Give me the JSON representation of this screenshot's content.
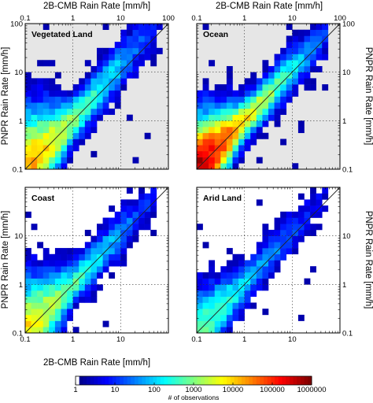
{
  "figure": {
    "top_xlabel": "2B-CMB Rain Rate [mm/h]",
    "bottom_xlabel": "2B-CMB Rain Rate [mm/h]",
    "right_ylabel": "PNPR Rain Rate [mm/h]",
    "left_ylabel": "PNPR Rain Rate [mm/h]"
  },
  "axis_ticks": {
    "x": [
      {
        "value": 0.1,
        "label": "0.1"
      },
      {
        "value": 1,
        "label": "1"
      },
      {
        "value": 10,
        "label": "10"
      },
      {
        "value": 100,
        "label": "100"
      }
    ],
    "y": [
      {
        "value": 0.1,
        "label": "0.1"
      },
      {
        "value": 1,
        "label": "1"
      },
      {
        "value": 10,
        "label": "10"
      },
      {
        "value": 100,
        "label": "100"
      }
    ]
  },
  "colorbar": {
    "title": "# of observations",
    "scale": "log",
    "range": [
      1,
      1000000
    ],
    "ticks": [
      {
        "value": 1,
        "label": "1"
      },
      {
        "value": 10,
        "label": "10"
      },
      {
        "value": 100,
        "label": "100"
      },
      {
        "value": 1000,
        "label": "1000"
      },
      {
        "value": 10000,
        "label": "10000"
      },
      {
        "value": 100000,
        "label": "100000"
      },
      {
        "value": 1000000,
        "label": "1000000"
      }
    ],
    "colormap": "jet"
  },
  "chart_data": [
    {
      "type": "heatmap",
      "title": "Vegetated Land",
      "xlabel": "2B-CMB Rain Rate [mm/h]",
      "ylabel": "PNPR Rain Rate [mm/h]",
      "xscale": "log",
      "yscale": "log",
      "xlim": [
        0.1,
        100
      ],
      "ylim": [
        0.1,
        100
      ],
      "grid": true,
      "one_to_one_line": true,
      "background_color": "#e6e6e6",
      "bins_per_decade": 8,
      "distribution": {
        "peak_log10_count": 4.5,
        "ridge_spread": 0.32,
        "low_x_spread_extra": 0.5,
        "max_x_log10": 1.85,
        "high_y_bias": 0.15
      }
    },
    {
      "type": "heatmap",
      "title": "Ocean",
      "xlabel": "2B-CMB Rain Rate [mm/h]",
      "ylabel": "PNPR Rain Rate [mm/h]",
      "xscale": "log",
      "yscale": "log",
      "xlim": [
        0.1,
        100
      ],
      "ylim": [
        0.1,
        100
      ],
      "grid": true,
      "one_to_one_line": true,
      "background_color": "#e6e6e6",
      "bins_per_decade": 8,
      "distribution": {
        "peak_log10_count": 5.8,
        "ridge_spread": 0.3,
        "low_x_spread_extra": 0.45,
        "max_x_log10": 1.8,
        "high_y_bias": 0.05
      }
    },
    {
      "type": "heatmap",
      "title": "Coast",
      "xlabel": "2B-CMB Rain Rate [mm/h]",
      "ylabel": "PNPR Rain Rate [mm/h]",
      "xscale": "log",
      "yscale": "log",
      "xlim": [
        0.1,
        100
      ],
      "ylim": [
        0.1,
        100
      ],
      "grid": true,
      "one_to_one_line": true,
      "background_color": "#ffffff",
      "bins_per_decade": 8,
      "distribution": {
        "peak_log10_count": 4.0,
        "ridge_spread": 0.3,
        "low_x_spread_extra": 0.45,
        "max_x_log10": 1.8,
        "high_y_bias": 0.05
      }
    },
    {
      "type": "heatmap",
      "title": "Arid Land",
      "xlabel": "2B-CMB Rain Rate [mm/h]",
      "ylabel": "PNPR Rain Rate [mm/h]",
      "xscale": "log",
      "yscale": "log",
      "xlim": [
        0.1,
        100
      ],
      "ylim": [
        0.1,
        100
      ],
      "grid": true,
      "one_to_one_line": true,
      "background_color": "#ffffff",
      "bins_per_decade": 8,
      "distribution": {
        "peak_log10_count": 3.0,
        "ridge_spread": 0.28,
        "low_x_spread_extra": 0.3,
        "max_x_log10": 1.75,
        "high_y_bias": 0.1
      }
    }
  ]
}
